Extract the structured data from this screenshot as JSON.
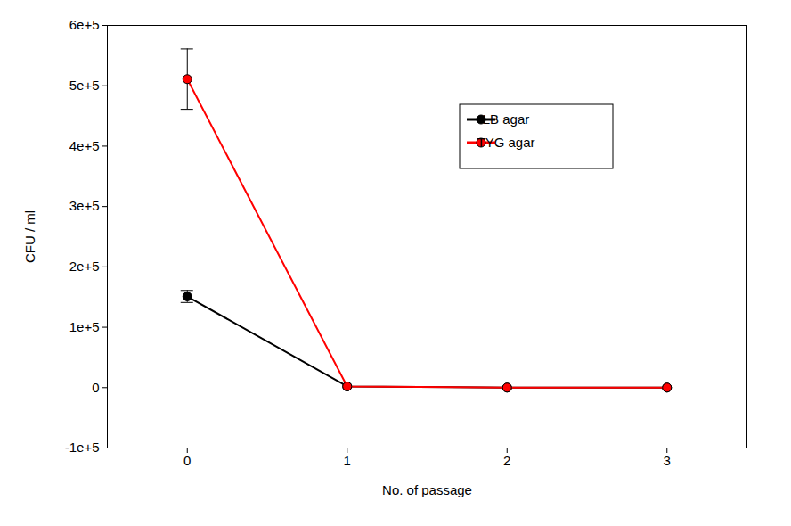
{
  "chart_data": {
    "type": "line",
    "x_label": "No. of passage",
    "y_label": "CFU / ml",
    "x": [
      0,
      1,
      2,
      3
    ],
    "series": [
      {
        "name": "LB agar",
        "color": "#000000",
        "marker": "circle",
        "values": [
          151000,
          2000,
          0,
          0
        ],
        "errors": [
          10000,
          0,
          0,
          0
        ]
      },
      {
        "name": "TYG agar",
        "color": "#ff0000",
        "marker": "circle",
        "values": [
          511000,
          2000,
          0,
          0
        ],
        "errors": [
          50000,
          0,
          0,
          0
        ]
      }
    ],
    "xlim": [
      -0.5,
      3.5
    ],
    "xticks": [
      0,
      1,
      2,
      3
    ],
    "ylim": [
      -100000,
      600000
    ],
    "yticks": [
      {
        "value": -100000,
        "label": "-1e+5"
      },
      {
        "value": 0,
        "label": "0"
      },
      {
        "value": 100000,
        "label": "1e+5"
      },
      {
        "value": 200000,
        "label": "2e+5"
      },
      {
        "value": 300000,
        "label": "3e+5"
      },
      {
        "value": 400000,
        "label": "4e+5"
      },
      {
        "value": 500000,
        "label": "5e+5"
      },
      {
        "value": 600000,
        "label": "6e+5"
      }
    ],
    "grid": false,
    "legend": "upper right"
  }
}
